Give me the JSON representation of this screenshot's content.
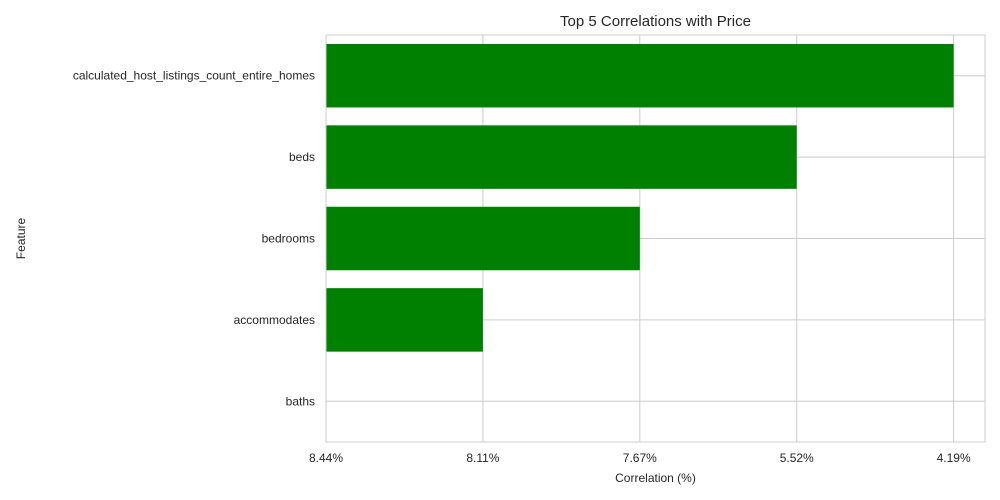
{
  "chart_data": {
    "type": "bar",
    "orientation": "horizontal",
    "title": "Top 5 Correlations with Price",
    "xlabel": "Correlation (%)",
    "ylabel": "Feature",
    "categories": [
      "calculated_host_listings_count_entire_homes",
      "beds",
      "bedrooms",
      "accommodates",
      "baths"
    ],
    "values": [
      4,
      3,
      2,
      1,
      0
    ],
    "x_tick_labels": [
      "8.44%",
      "8.11%",
      "7.67%",
      "5.52%",
      "4.19%"
    ],
    "xlim": [
      0,
      4
    ],
    "bar_color": "#008000",
    "grid": true
  }
}
